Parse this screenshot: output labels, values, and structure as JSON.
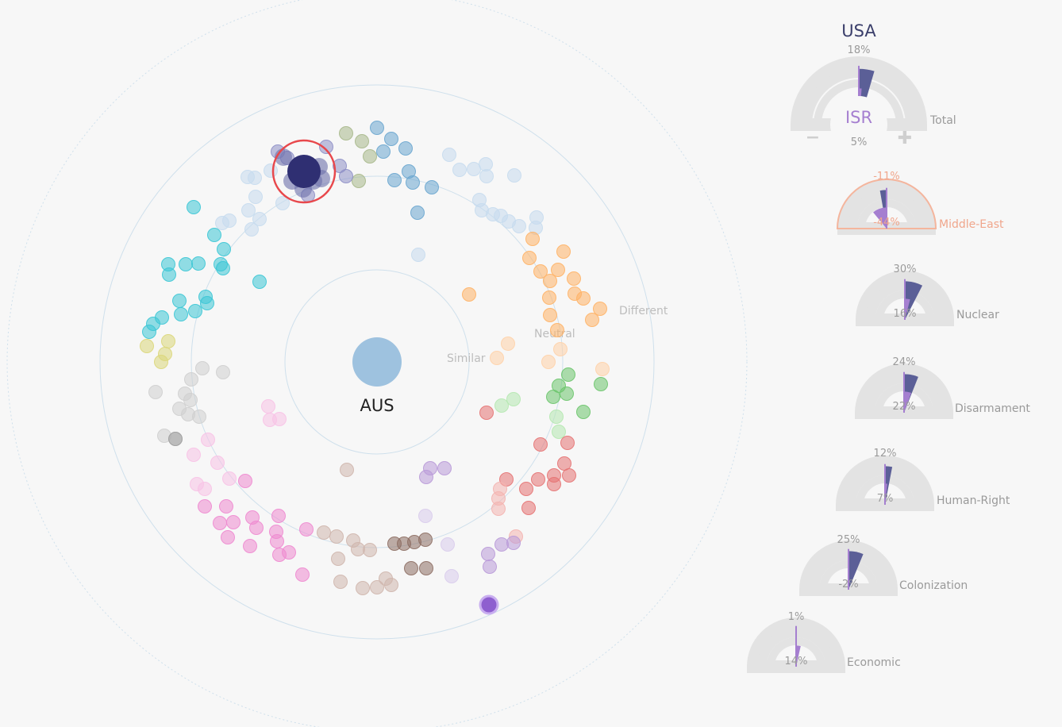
{
  "chart_data": {
    "type": "scatter",
    "title": "",
    "center_country": "AUS",
    "ring_labels": [
      "Similar",
      "Neutral",
      "Different"
    ],
    "highlighted_country": "USA",
    "compared_country": "ISR",
    "colors": {
      "country_a": "#5b5f97",
      "country_b": "#a57fd0",
      "gauge_bg": "#e3e3e3",
      "selected_ring": "#f4b59d",
      "selected_text": "#f0a68c",
      "highlight_ring": "#e8484c",
      "highlight_dot": "#2f2f72",
      "center_dot": "#9ec2df",
      "orbit": "#cfe0ec"
    },
    "gauges": [
      {
        "name": "Total",
        "a": 18,
        "b": 5,
        "a_label": "18%",
        "b_label": "5%",
        "minus": "−",
        "plus": "✚",
        "selected": false
      },
      {
        "name": "Middle-East",
        "a": -11,
        "b": -44,
        "a_label": "-11%",
        "b_label": "-44%",
        "selected": true
      },
      {
        "name": "Nuclear",
        "a": 30,
        "b": 16,
        "a_label": "30%",
        "b_label": "16%",
        "selected": false
      },
      {
        "name": "Disarmament",
        "a": 24,
        "b": 22,
        "a_label": "24%",
        "b_label": "22%",
        "selected": false
      },
      {
        "name": "Human-Right",
        "a": 12,
        "b": 7,
        "a_label": "12%",
        "b_label": "7%",
        "selected": false
      },
      {
        "name": "Colonization",
        "a": 25,
        "b": -2,
        "a_label": "25%",
        "b_label": "-2%",
        "selected": false
      },
      {
        "name": "Economic",
        "a": 1,
        "b": 14,
        "a_label": "1%",
        "b_label": "14%",
        "selected": false
      }
    ]
  }
}
